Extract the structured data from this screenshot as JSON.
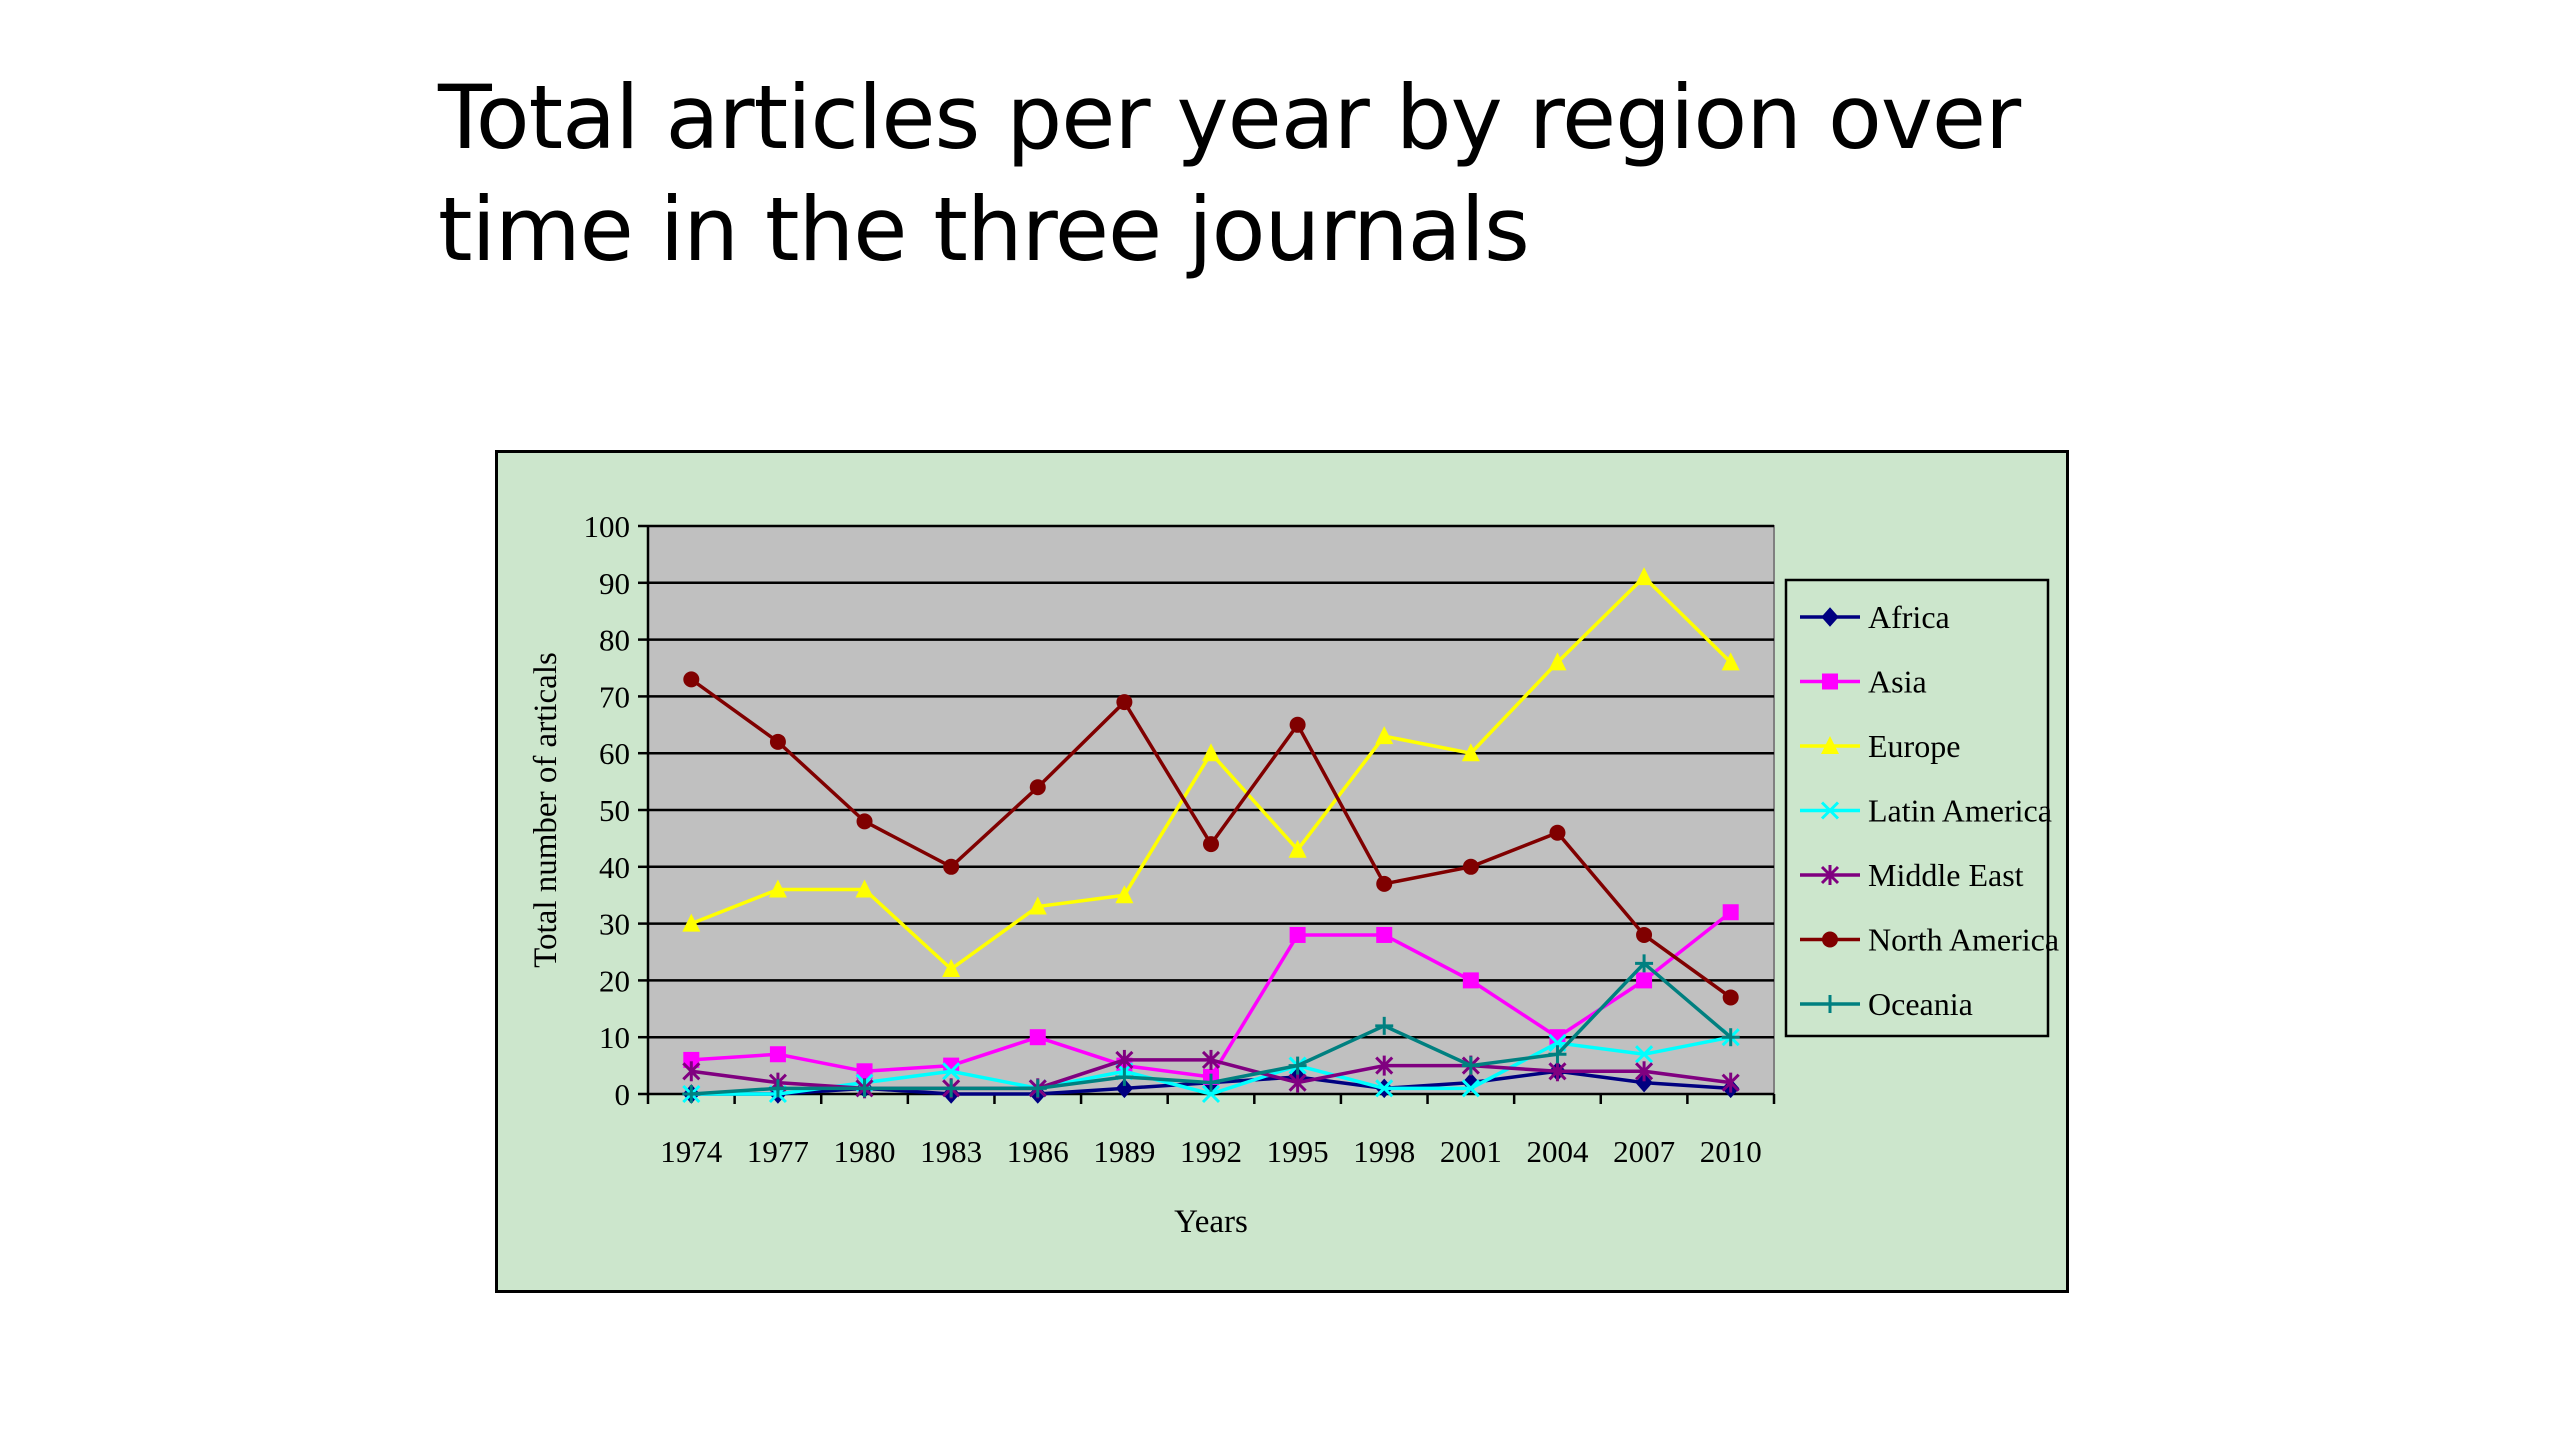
{
  "slide": {
    "title_line1": "Total articles per year by region over",
    "title_line2": "time in the three journals"
  },
  "chart_data": {
    "type": "line",
    "title": "",
    "xlabel": "Years",
    "ylabel": "Total number of articals",
    "ylim": [
      0,
      100
    ],
    "yticks": [
      0,
      10,
      20,
      30,
      40,
      50,
      60,
      70,
      80,
      90,
      100
    ],
    "grid": true,
    "plot_background": "#c0c0c0",
    "frame_background": "#cce6cc",
    "legend_position": "right",
    "categories": [
      "1974",
      "1977",
      "1980",
      "1983",
      "1986",
      "1989",
      "1992",
      "1995",
      "1998",
      "2001",
      "2004",
      "2007",
      "2010"
    ],
    "series": [
      {
        "name": "Africa",
        "color": "#000080",
        "marker": "diamond",
        "values": [
          0,
          0,
          1,
          0,
          0,
          1,
          2,
          3,
          1,
          2,
          4,
          2,
          1
        ]
      },
      {
        "name": "Asia",
        "color": "#ff00ff",
        "marker": "square",
        "values": [
          6,
          7,
          4,
          5,
          10,
          5,
          3,
          28,
          28,
          20,
          10,
          20,
          32
        ]
      },
      {
        "name": "Europe",
        "color": "#ffff00",
        "marker": "triangle",
        "values": [
          30,
          36,
          36,
          22,
          33,
          35,
          60,
          43,
          63,
          60,
          76,
          91,
          76
        ]
      },
      {
        "name": "Latin America",
        "color": "#00ffff",
        "marker": "x",
        "values": [
          0,
          0,
          2,
          4,
          1,
          4,
          0,
          5,
          1,
          1,
          9,
          7,
          10
        ]
      },
      {
        "name": "Middle East",
        "color": "#800080",
        "marker": "star",
        "values": [
          4,
          2,
          1,
          1,
          1,
          6,
          6,
          2,
          5,
          5,
          4,
          4,
          2
        ]
      },
      {
        "name": "North America",
        "color": "#800000",
        "marker": "circle",
        "values": [
          73,
          62,
          48,
          40,
          54,
          69,
          44,
          65,
          37,
          40,
          46,
          28,
          17
        ]
      },
      {
        "name": "Oceania",
        "color": "#008080",
        "marker": "plus",
        "values": [
          0,
          1,
          1,
          1,
          1,
          3,
          2,
          5,
          12,
          5,
          7,
          23,
          10
        ]
      }
    ]
  }
}
